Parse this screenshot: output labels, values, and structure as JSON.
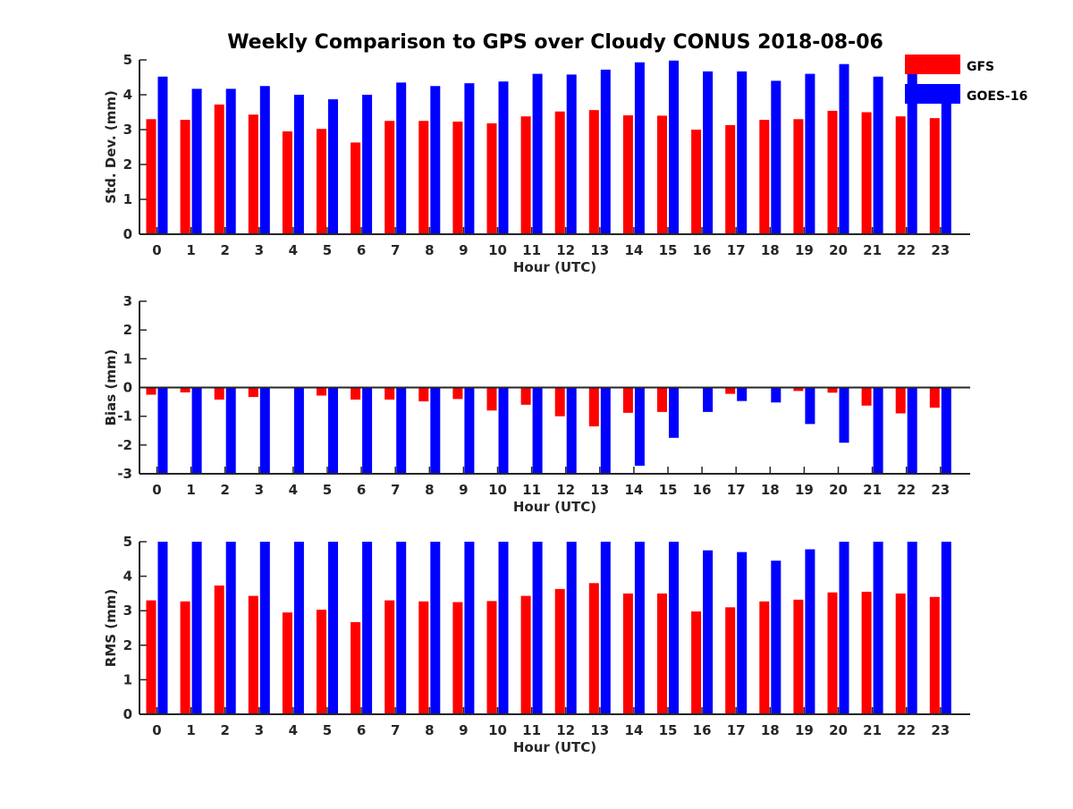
{
  "title": "Weekly Comparison to GPS over Cloudy CONUS 2018-08-06",
  "colors": {
    "gfs": "#ff0000",
    "goes": "#0000ff",
    "axis": "#262626"
  },
  "legend": {
    "placement": "top-right",
    "items": [
      "GFS",
      "GOES-16"
    ]
  },
  "chart_data": [
    {
      "type": "bar",
      "xlabel": "Hour (UTC)",
      "ylabel": "Std. Dev. (mm)",
      "ylim": [
        0,
        5
      ],
      "yticks": [
        0,
        1,
        2,
        3,
        4,
        5
      ],
      "categories": [
        "0",
        "1",
        "2",
        "3",
        "4",
        "5",
        "6",
        "7",
        "8",
        "9",
        "10",
        "11",
        "12",
        "13",
        "14",
        "15",
        "16",
        "17",
        "18",
        "19",
        "20",
        "21",
        "22",
        "23"
      ],
      "series": [
        {
          "name": "GFS",
          "values": [
            3.3,
            3.28,
            3.72,
            3.43,
            2.95,
            3.02,
            2.63,
            3.25,
            3.25,
            3.23,
            3.18,
            3.38,
            3.52,
            3.56,
            3.41,
            3.4,
            3.0,
            3.13,
            3.28,
            3.3,
            3.54,
            3.5,
            3.38,
            3.33
          ]
        },
        {
          "name": "GOES-16",
          "values": [
            4.52,
            4.17,
            4.17,
            4.25,
            4.0,
            3.87,
            4.0,
            4.35,
            4.25,
            4.33,
            4.38,
            4.6,
            4.58,
            4.72,
            4.93,
            4.98,
            4.67,
            4.67,
            4.4,
            4.6,
            4.88,
            4.52,
            4.8,
            3.83
          ]
        }
      ]
    },
    {
      "type": "bar",
      "xlabel": "Hour (UTC)",
      "ylabel": "Bias (mm)",
      "ylim": [
        -3,
        3
      ],
      "yticks": [
        -3,
        -2,
        -1,
        0,
        1,
        2,
        3
      ],
      "categories": [
        "0",
        "1",
        "2",
        "3",
        "4",
        "5",
        "6",
        "7",
        "8",
        "9",
        "10",
        "11",
        "12",
        "13",
        "14",
        "15",
        "16",
        "17",
        "18",
        "19",
        "20",
        "21",
        "22",
        "23"
      ],
      "series": [
        {
          "name": "GFS",
          "values": [
            -0.25,
            -0.17,
            -0.42,
            -0.33,
            -0.03,
            -0.28,
            -0.42,
            -0.42,
            -0.48,
            -0.4,
            -0.8,
            -0.6,
            -1.0,
            -1.35,
            -0.88,
            -0.85,
            0.03,
            -0.22,
            0.0,
            -0.12,
            -0.18,
            -0.63,
            -0.9,
            -0.7
          ]
        },
        {
          "name": "GOES-16",
          "values": [
            -3.0,
            -3.0,
            -3.0,
            -3.0,
            -3.0,
            -3.0,
            -3.0,
            -3.0,
            -3.0,
            -3.0,
            -3.0,
            -3.0,
            -3.0,
            -3.0,
            -2.72,
            -1.75,
            -0.85,
            -0.47,
            -0.52,
            -1.27,
            -1.92,
            -3.0,
            -3.0,
            -3.0
          ]
        }
      ]
    },
    {
      "type": "bar",
      "xlabel": "Hour (UTC)",
      "ylabel": "RMS (mm)",
      "ylim": [
        0,
        5
      ],
      "yticks": [
        0,
        1,
        2,
        3,
        4,
        5
      ],
      "categories": [
        "0",
        "1",
        "2",
        "3",
        "4",
        "5",
        "6",
        "7",
        "8",
        "9",
        "10",
        "11",
        "12",
        "13",
        "14",
        "15",
        "16",
        "17",
        "18",
        "19",
        "20",
        "21",
        "22",
        "23"
      ],
      "series": [
        {
          "name": "GFS",
          "values": [
            3.3,
            3.27,
            3.73,
            3.43,
            2.95,
            3.03,
            2.67,
            3.3,
            3.27,
            3.25,
            3.28,
            3.43,
            3.63,
            3.8,
            3.5,
            3.5,
            2.98,
            3.1,
            3.27,
            3.32,
            3.53,
            3.55,
            3.5,
            3.4
          ]
        },
        {
          "name": "GOES-16",
          "values": [
            5.0,
            5.0,
            5.0,
            5.0,
            5.0,
            5.0,
            5.0,
            5.0,
            5.0,
            5.0,
            5.0,
            5.0,
            5.0,
            5.0,
            5.0,
            5.0,
            4.75,
            4.7,
            4.45,
            4.78,
            5.0,
            5.0,
            5.0,
            5.0
          ]
        }
      ]
    }
  ]
}
